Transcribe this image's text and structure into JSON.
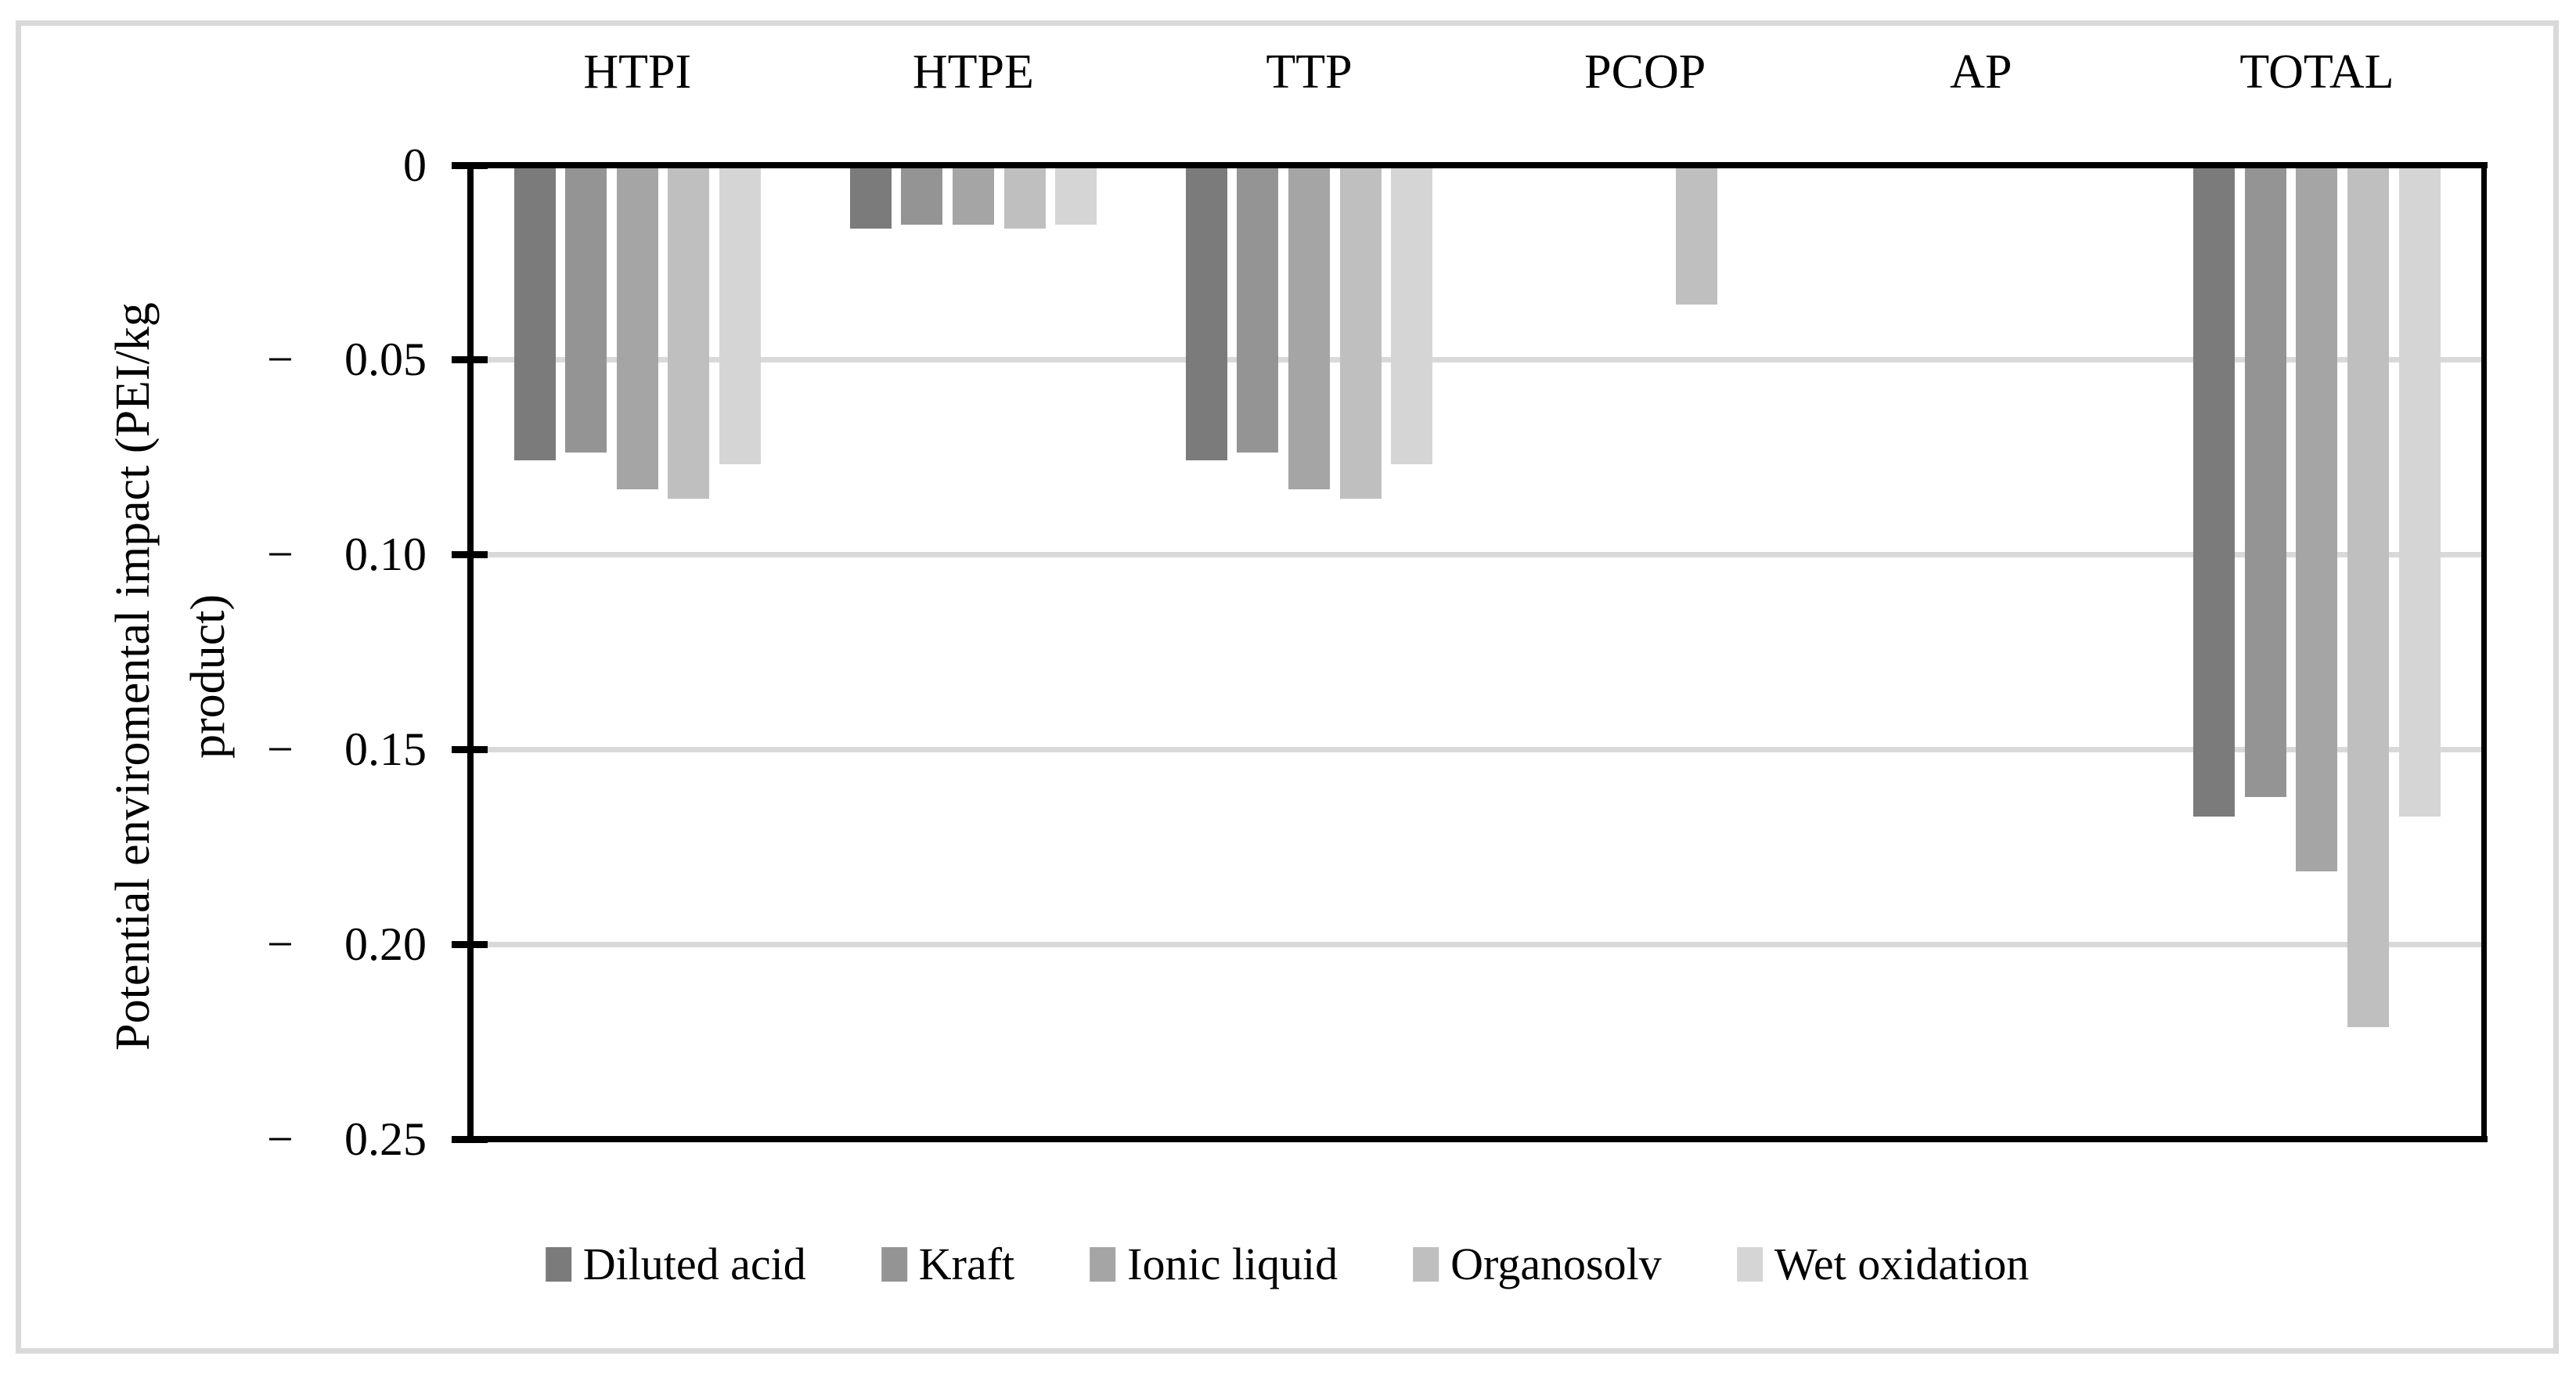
{
  "figure": {
    "background": "#ffffff",
    "frame_color": "#d9d9d9"
  },
  "chart_data": {
    "type": "bar",
    "title": "",
    "ylabel": "Potential enviromental impact (PEI/kg product)",
    "ylabel_lines": [
      "Potential enviromental impact (PEI/kg",
      "product)"
    ],
    "categories": [
      "HTPI",
      "HTPE",
      "TTP",
      "PCOP",
      "AP",
      "TOTAL"
    ],
    "series": [
      {
        "name": "Diluted acid",
        "color": "#7b7b7b",
        "values": [
          -0.0755,
          -0.016,
          -0.0755,
          0,
          0,
          -0.167
        ]
      },
      {
        "name": "Kraft",
        "color": "#949494",
        "values": [
          -0.0735,
          -0.015,
          -0.0735,
          0,
          0,
          -0.162
        ]
      },
      {
        "name": "Ionic liquid",
        "color": "#a5a5a5",
        "values": [
          -0.083,
          -0.015,
          -0.083,
          0,
          0,
          -0.181
        ]
      },
      {
        "name": "Organosolv",
        "color": "#bfbfbf",
        "values": [
          -0.0855,
          -0.016,
          -0.0855,
          -0.0355,
          0,
          -0.221
        ]
      },
      {
        "name": "Wet oxidation",
        "color": "#d5d5d5",
        "values": [
          -0.0765,
          -0.015,
          -0.0765,
          0,
          0,
          -0.167
        ]
      }
    ],
    "y_axis": {
      "min": -0.25,
      "max": 0,
      "step": 0.05,
      "tick_labels": [
        {
          "sign": "",
          "number": "0"
        },
        {
          "sign": "−",
          "number": "0.05"
        },
        {
          "sign": "−",
          "number": "0.10"
        },
        {
          "sign": "−",
          "number": "0.15"
        },
        {
          "sign": "−",
          "number": "0.20"
        },
        {
          "sign": "−",
          "number": "0.25"
        }
      ]
    },
    "grid": true,
    "gridline_color": "#d9d9d9",
    "legend_position": "bottom"
  }
}
